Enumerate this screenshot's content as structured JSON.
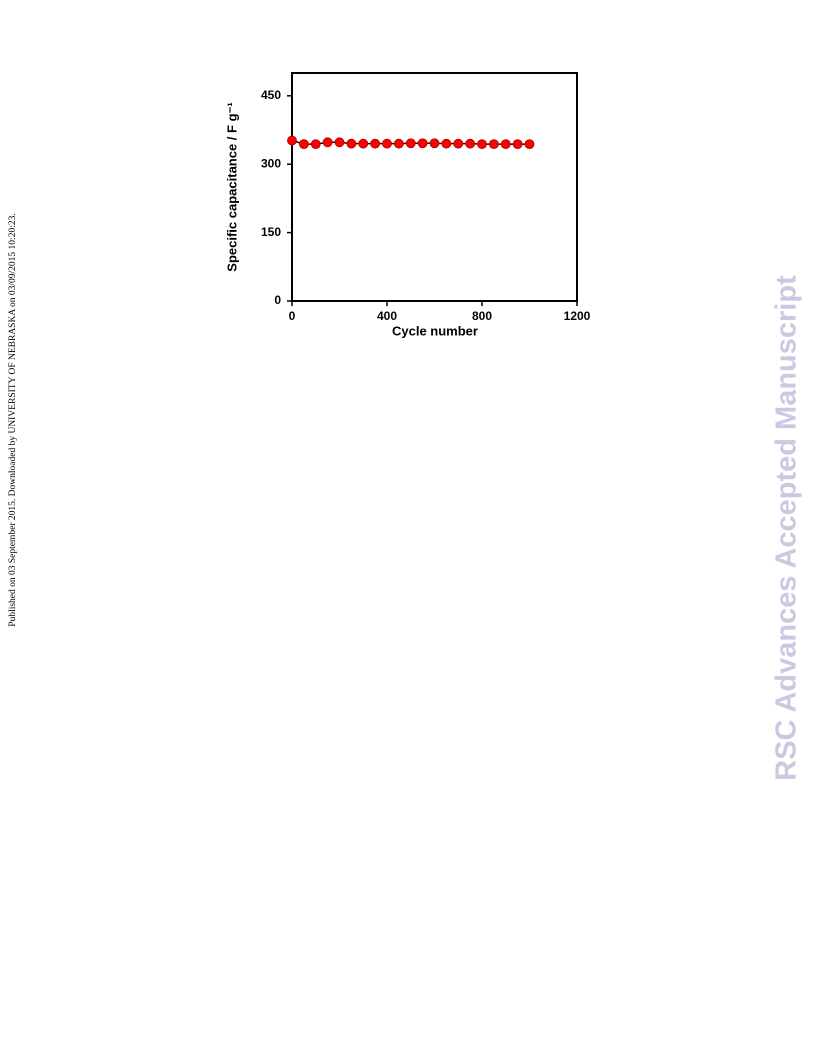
{
  "side_note": "Published on 03 September 2015. Downloaded by UNIVERSITY OF NEBRASKA on 03/09/2015 10:20:23.",
  "watermark": "RSC Advances Accepted Manuscript",
  "chart_data": {
    "type": "line",
    "x_label": "Cycle number",
    "y_label": "Specific capacitance / F g⁻¹",
    "x": [
      0,
      50,
      100,
      150,
      200,
      250,
      300,
      350,
      400,
      450,
      500,
      550,
      600,
      650,
      700,
      750,
      800,
      850,
      900,
      950,
      1000
    ],
    "series": [
      {
        "color": "#ff0000",
        "values": [
          352,
          344,
          344,
          348,
          348,
          345,
          345,
          345,
          345,
          345,
          346,
          346,
          346,
          345,
          345,
          345,
          344,
          344,
          344,
          344,
          344
        ]
      }
    ],
    "xlim": [
      0,
      1200
    ],
    "xticks": [
      0,
      400,
      800,
      1200
    ],
    "ylim": [
      0,
      500
    ],
    "yticks": [
      0,
      150,
      300,
      450
    ],
    "grid": false
  }
}
